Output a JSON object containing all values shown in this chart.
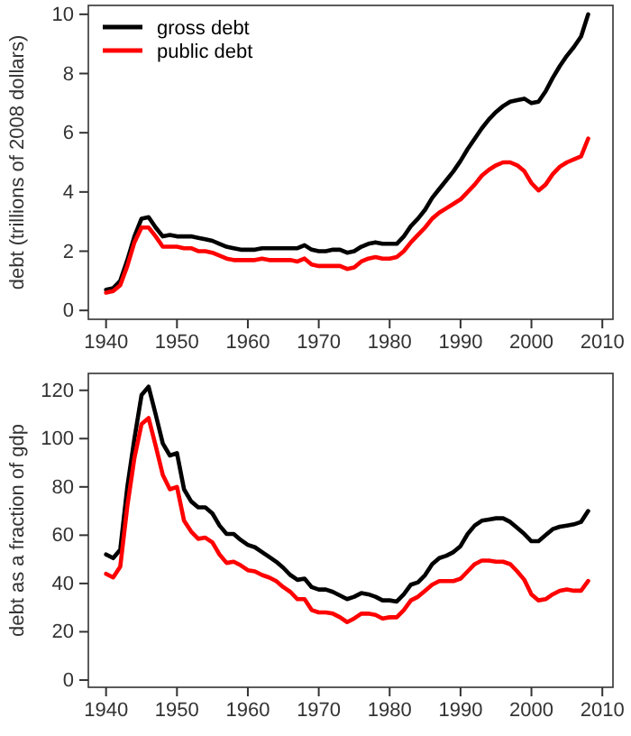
{
  "chart_data": [
    {
      "type": "line",
      "ylabel": "debt (trillions of 2008 dollars)",
      "x": [
        1940,
        1941,
        1942,
        1943,
        1944,
        1945,
        1946,
        1947,
        1948,
        1949,
        1950,
        1951,
        1952,
        1953,
        1954,
        1955,
        1956,
        1957,
        1958,
        1959,
        1960,
        1961,
        1962,
        1963,
        1964,
        1965,
        1966,
        1967,
        1968,
        1969,
        1970,
        1971,
        1972,
        1973,
        1974,
        1975,
        1976,
        1977,
        1978,
        1979,
        1980,
        1981,
        1982,
        1983,
        1984,
        1985,
        1986,
        1987,
        1988,
        1989,
        1990,
        1991,
        1992,
        1993,
        1994,
        1995,
        1996,
        1997,
        1998,
        1999,
        2000,
        2001,
        2002,
        2003,
        2004,
        2005,
        2006,
        2007,
        2008
      ],
      "series": [
        {
          "name": "gross debt",
          "color": "#000000",
          "values": [
            0.7,
            0.75,
            1.0,
            1.7,
            2.5,
            3.1,
            3.15,
            2.8,
            2.5,
            2.55,
            2.5,
            2.5,
            2.5,
            2.45,
            2.4,
            2.35,
            2.25,
            2.15,
            2.1,
            2.05,
            2.05,
            2.05,
            2.1,
            2.1,
            2.1,
            2.1,
            2.1,
            2.1,
            2.2,
            2.05,
            2.0,
            2.0,
            2.05,
            2.05,
            1.95,
            2.0,
            2.15,
            2.25,
            2.3,
            2.25,
            2.25,
            2.25,
            2.5,
            2.85,
            3.1,
            3.4,
            3.8,
            4.1,
            4.4,
            4.7,
            5.05,
            5.45,
            5.8,
            6.15,
            6.45,
            6.7,
            6.9,
            7.05,
            7.1,
            7.15,
            7.0,
            7.05,
            7.4,
            7.85,
            8.25,
            8.6,
            8.9,
            9.25,
            10.0
          ]
        },
        {
          "name": "public debt",
          "color": "#ff0000",
          "values": [
            0.6,
            0.65,
            0.85,
            1.5,
            2.3,
            2.8,
            2.8,
            2.5,
            2.15,
            2.15,
            2.15,
            2.1,
            2.1,
            2.0,
            2.0,
            1.95,
            1.85,
            1.75,
            1.7,
            1.7,
            1.7,
            1.7,
            1.75,
            1.7,
            1.7,
            1.7,
            1.7,
            1.65,
            1.75,
            1.55,
            1.5,
            1.5,
            1.5,
            1.5,
            1.4,
            1.45,
            1.65,
            1.75,
            1.8,
            1.75,
            1.75,
            1.8,
            2.0,
            2.3,
            2.55,
            2.8,
            3.1,
            3.3,
            3.45,
            3.6,
            3.75,
            4.0,
            4.25,
            4.55,
            4.75,
            4.9,
            5.0,
            5.0,
            4.9,
            4.7,
            4.3,
            4.05,
            4.25,
            4.6,
            4.85,
            5.0,
            5.1,
            5.2,
            5.8
          ]
        }
      ],
      "xlim": [
        1937.5,
        2011.5
      ],
      "xticks": [
        1940,
        1950,
        1960,
        1970,
        1980,
        1990,
        2000,
        2010
      ],
      "ylim": [
        -0.3,
        10.3
      ],
      "yticks": [
        0,
        2,
        4,
        6,
        8,
        10
      ],
      "legend": "top left",
      "grid": false
    },
    {
      "type": "line",
      "ylabel": "debt as a fraction of gdp",
      "x": [
        1940,
        1941,
        1942,
        1943,
        1944,
        1945,
        1946,
        1947,
        1948,
        1949,
        1950,
        1951,
        1952,
        1953,
        1954,
        1955,
        1956,
        1957,
        1958,
        1959,
        1960,
        1961,
        1962,
        1963,
        1964,
        1965,
        1966,
        1967,
        1968,
        1969,
        1970,
        1971,
        1972,
        1973,
        1974,
        1975,
        1976,
        1977,
        1978,
        1979,
        1980,
        1981,
        1982,
        1983,
        1984,
        1985,
        1986,
        1987,
        1988,
        1989,
        1990,
        1991,
        1992,
        1993,
        1994,
        1995,
        1996,
        1997,
        1998,
        1999,
        2000,
        2001,
        2002,
        2003,
        2004,
        2005,
        2006,
        2007,
        2008
      ],
      "series": [
        {
          "color": "#000000",
          "values": [
            52,
            50.5,
            54,
            80,
            100,
            118,
            121.5,
            110,
            98,
            93,
            94,
            79,
            74,
            71.5,
            71.5,
            69,
            64,
            60.5,
            60.5,
            58,
            56,
            55,
            53,
            51,
            49,
            46.5,
            43.5,
            41.5,
            42,
            38.5,
            37.5,
            37.5,
            36.5,
            35,
            33.5,
            34.5,
            36,
            35.5,
            34.5,
            33,
            33,
            32.5,
            35.5,
            39.5,
            40.5,
            43.5,
            48,
            50.5,
            51.5,
            53,
            55.5,
            60.5,
            64,
            66,
            66.5,
            67,
            67,
            65.5,
            63,
            60.5,
            57.5,
            57.5,
            60,
            62.5,
            63.5,
            64,
            64.5,
            65.5,
            70
          ]
        },
        {
          "color": "#ff0000",
          "values": [
            44,
            42.5,
            47,
            72,
            92,
            106,
            108.5,
            97,
            85,
            79,
            80,
            66,
            61.5,
            58.5,
            59,
            57,
            52,
            48.5,
            49,
            47.5,
            45.5,
            45,
            43.5,
            42.5,
            41,
            38.5,
            36.5,
            33.5,
            33.5,
            29,
            28,
            28,
            27.5,
            26,
            24,
            25.5,
            27.5,
            27.5,
            27,
            25.5,
            26,
            26,
            29,
            33,
            34.5,
            37,
            39.5,
            41,
            41,
            41,
            42,
            45,
            48,
            49.5,
            49.5,
            49,
            49,
            48,
            45,
            41.5,
            35.5,
            33,
            33.5,
            35.5,
            37,
            37.5,
            37,
            37,
            41
          ]
        }
      ],
      "xlim": [
        1937.5,
        2011.5
      ],
      "xticks": [
        1940,
        1950,
        1960,
        1970,
        1980,
        1990,
        2000,
        2010
      ],
      "ylim": [
        -3,
        127
      ],
      "yticks": [
        0,
        20,
        40,
        60,
        80,
        100,
        120
      ],
      "grid": false
    }
  ]
}
